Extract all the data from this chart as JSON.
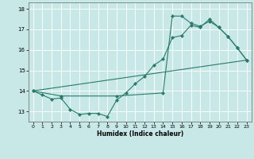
{
  "title": "",
  "xlabel": "Humidex (Indice chaleur)",
  "background_color": "#c8e8e8",
  "grid_color": "#b0d8d8",
  "line_color": "#2a7a6a",
  "xlim": [
    -0.5,
    23.5
  ],
  "ylim": [
    12.5,
    18.3
  ],
  "yticks": [
    13,
    14,
    15,
    16,
    17,
    18
  ],
  "xticks": [
    0,
    1,
    2,
    3,
    4,
    5,
    6,
    7,
    8,
    9,
    10,
    11,
    12,
    13,
    14,
    15,
    16,
    17,
    18,
    19,
    20,
    21,
    22,
    23
  ],
  "series1_x": [
    0,
    1,
    2,
    3,
    4,
    5,
    6,
    7,
    8,
    9,
    10,
    11,
    12,
    13,
    14,
    15,
    16,
    17,
    18,
    19,
    20,
    21,
    22,
    23
  ],
  "series1_y": [
    14.0,
    13.8,
    13.6,
    13.65,
    13.1,
    12.85,
    12.9,
    12.9,
    12.75,
    13.55,
    13.9,
    14.35,
    14.7,
    15.25,
    15.55,
    16.6,
    16.7,
    17.2,
    17.1,
    17.5,
    17.1,
    16.65,
    16.1,
    15.5
  ],
  "series2_x": [
    0,
    3,
    9,
    14,
    15,
    16,
    17,
    18,
    19,
    20,
    21,
    22,
    23
  ],
  "series2_y": [
    14.0,
    13.75,
    13.75,
    13.9,
    17.65,
    17.65,
    17.3,
    17.15,
    17.4,
    17.1,
    16.65,
    16.1,
    15.5
  ],
  "series3_x": [
    0,
    23
  ],
  "series3_y": [
    14.0,
    15.5
  ]
}
